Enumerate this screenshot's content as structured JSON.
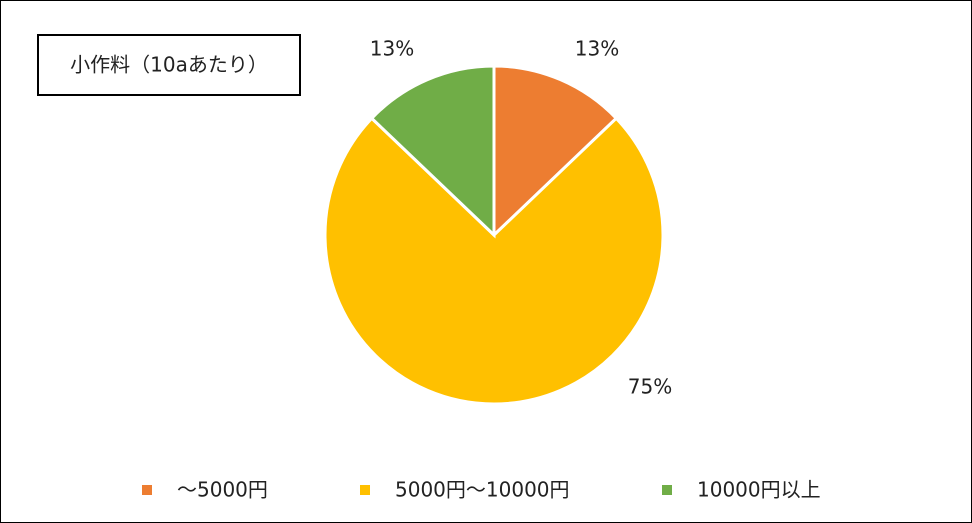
{
  "chart_data": {
    "type": "pie",
    "title": "小作料（10aあたり）",
    "categories": [
      "～5000円",
      "5000円～10000円",
      "10000円以上"
    ],
    "values": [
      13,
      75,
      13
    ],
    "value_labels": [
      "13%",
      "75%",
      "13%"
    ],
    "colors": [
      "#ed7d31",
      "#ffc000",
      "#70ad47"
    ],
    "legend": "bottom"
  }
}
